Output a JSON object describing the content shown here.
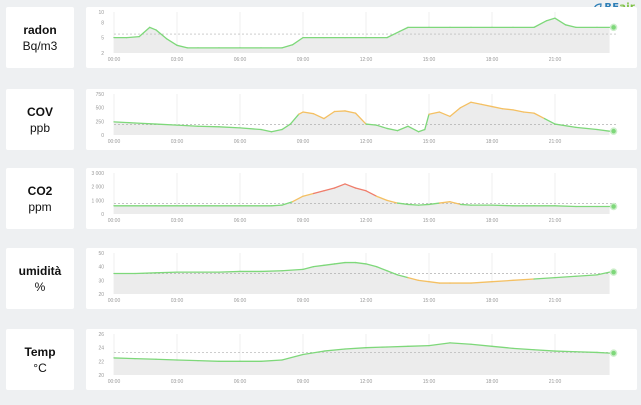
{
  "logo": {
    "text_re": "RE",
    "text_air": "air"
  },
  "colors": {
    "green": "#7ed87a",
    "orange": "#f4c063",
    "red": "#ef7d6b",
    "fill": "#ececec",
    "grid": "#e4e4e4",
    "tick": "#999999",
    "ref_line": "#b0b0b0"
  },
  "x_ticks": [
    "00:00",
    "03:00",
    "06:00",
    "09:00",
    "12:00",
    "15:00",
    "18:00",
    "21:00"
  ],
  "chart_data": [
    {
      "type": "area",
      "name": "radon",
      "unit": "Bq/m3",
      "ylim": [
        2,
        10
      ],
      "yticks": [
        "10",
        "8",
        "5",
        "2"
      ],
      "ytick_values": [
        10,
        8,
        5,
        2
      ],
      "reference": 5.7,
      "x": [
        0,
        0.6,
        1.2,
        1.7,
        2.0,
        2.5,
        3.0,
        3.5,
        4.0,
        5.0,
        6.0,
        7.0,
        8.0,
        8.5,
        9.0,
        10.0,
        11.0,
        12.0,
        13.0,
        13.6,
        14.0,
        15.0,
        16.0,
        17.0,
        18.0,
        19.0,
        20.0,
        20.6,
        21.0,
        21.5,
        22.0,
        23.0,
        23.6
      ],
      "values": [
        5.0,
        5.0,
        5.2,
        7.0,
        6.5,
        4.8,
        3.5,
        3.0,
        3.0,
        3.0,
        3.0,
        3.0,
        3.0,
        3.6,
        5.0,
        5.0,
        5.0,
        5.0,
        5.0,
        6.2,
        7.0,
        7.0,
        7.0,
        7.0,
        7.0,
        7.0,
        7.0,
        8.3,
        8.8,
        7.5,
        7.0,
        7.0,
        7.0
      ],
      "levels": "green"
    },
    {
      "type": "area",
      "name": "COV",
      "unit": "ppb",
      "ylim": [
        0,
        750
      ],
      "yticks": [
        "750",
        "500",
        "250",
        "0"
      ],
      "ytick_values": [
        750,
        500,
        250,
        0
      ],
      "reference": 190,
      "x": [
        0,
        1.0,
        2.0,
        3.0,
        4.0,
        5.0,
        6.0,
        7.0,
        7.5,
        8.0,
        8.4,
        8.8,
        9.0,
        9.5,
        10.0,
        10.5,
        11.0,
        11.5,
        12.0,
        12.5,
        13.0,
        13.5,
        14.0,
        14.5,
        14.8,
        15.0,
        15.5,
        16.0,
        16.5,
        17.0,
        17.5,
        18.0,
        18.5,
        19.0,
        19.5,
        20.0,
        20.5,
        21.0,
        22.0,
        23.0,
        23.6
      ],
      "values": [
        240,
        220,
        200,
        180,
        160,
        150,
        130,
        100,
        60,
        100,
        200,
        380,
        420,
        390,
        300,
        430,
        440,
        400,
        200,
        180,
        120,
        80,
        160,
        60,
        100,
        380,
        420,
        340,
        500,
        600,
        560,
        520,
        480,
        460,
        420,
        400,
        300,
        200,
        140,
        100,
        70
      ],
      "levels": "mixed"
    },
    {
      "type": "area",
      "name": "CO2",
      "unit": "ppm",
      "ylim": [
        0,
        3000
      ],
      "yticks": [
        "3 000",
        "2 000",
        "1 000",
        "0"
      ],
      "ytick_values": [
        3000,
        2000,
        1000,
        0
      ],
      "reference": 780,
      "x": [
        0,
        2.0,
        4.0,
        6.0,
        7.5,
        8.0,
        8.5,
        9.0,
        9.5,
        10.0,
        10.5,
        11.0,
        11.5,
        12.0,
        12.5,
        13.0,
        13.5,
        14.0,
        14.5,
        15.0,
        15.5,
        16.0,
        16.5,
        17.0,
        18.0,
        19.0,
        20.0,
        21.0,
        22.0,
        23.0,
        23.6
      ],
      "values": [
        600,
        600,
        600,
        600,
        600,
        650,
        900,
        1300,
        1500,
        1700,
        1900,
        2200,
        1900,
        1700,
        1300,
        1000,
        800,
        700,
        650,
        700,
        800,
        900,
        700,
        650,
        650,
        600,
        600,
        600,
        550,
        550,
        550
      ],
      "levels": "mixed"
    },
    {
      "type": "area",
      "name": "umidità",
      "unit": "%",
      "ylim": [
        20,
        50
      ],
      "yticks": [
        "50",
        "40",
        "30",
        "20"
      ],
      "ytick_values": [
        50,
        40,
        30,
        20
      ],
      "reference": 35,
      "x": [
        0,
        1.0,
        2.0,
        3.0,
        4.0,
        5.0,
        6.0,
        7.0,
        8.0,
        9.0,
        9.5,
        10.0,
        10.5,
        11.0,
        11.5,
        12.0,
        12.5,
        13.0,
        13.5,
        14.0,
        14.5,
        15.0,
        15.5,
        16.0,
        17.0,
        18.0,
        19.0,
        20.0,
        21.0,
        22.0,
        23.0,
        23.6
      ],
      "values": [
        35,
        35,
        35.5,
        36,
        36,
        36,
        36.5,
        36.5,
        37,
        38,
        40,
        41,
        42,
        43,
        43,
        42,
        40,
        37,
        34,
        32,
        30,
        29,
        28,
        28,
        28,
        29,
        30,
        31,
        32,
        33,
        34,
        36
      ],
      "levels": "mixed"
    },
    {
      "type": "area",
      "name": "Temp",
      "unit": "°C",
      "ylim": [
        20,
        26
      ],
      "yticks": [
        "26",
        "24",
        "22",
        "20"
      ],
      "ytick_values": [
        26,
        24,
        22,
        20
      ],
      "reference": 23.3,
      "x": [
        0,
        1.0,
        2.0,
        3.0,
        4.0,
        5.0,
        6.0,
        7.0,
        8.0,
        9.0,
        10.0,
        11.0,
        12.0,
        13.0,
        14.0,
        15.0,
        16.0,
        17.0,
        18.0,
        19.0,
        20.0,
        21.0,
        22.0,
        23.0,
        23.6
      ],
      "values": [
        22.5,
        22.4,
        22.3,
        22.2,
        22.1,
        22.0,
        22.0,
        22.0,
        22.2,
        23.0,
        23.5,
        23.8,
        24.0,
        24.1,
        24.2,
        24.3,
        24.7,
        24.5,
        24.2,
        23.9,
        23.7,
        23.5,
        23.4,
        23.3,
        23.2
      ],
      "levels": "green"
    }
  ]
}
